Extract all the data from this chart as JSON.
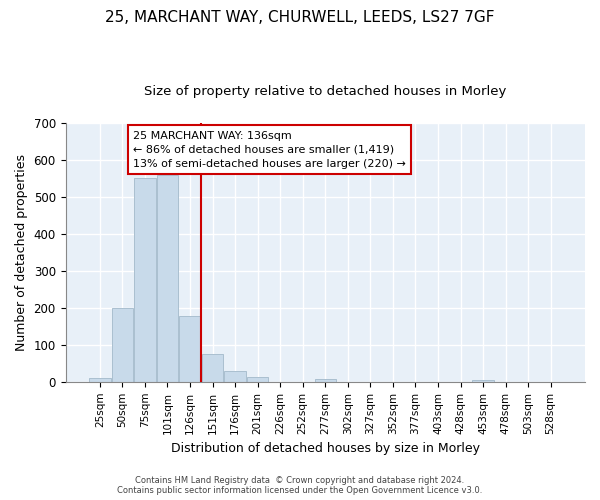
{
  "title1": "25, MARCHANT WAY, CHURWELL, LEEDS, LS27 7GF",
  "title2": "Size of property relative to detached houses in Morley",
  "xlabel": "Distribution of detached houses by size in Morley",
  "ylabel": "Number of detached properties",
  "bar_labels": [
    "25sqm",
    "50sqm",
    "75sqm",
    "101sqm",
    "126sqm",
    "151sqm",
    "176sqm",
    "201sqm",
    "226sqm",
    "252sqm",
    "277sqm",
    "302sqm",
    "327sqm",
    "352sqm",
    "377sqm",
    "403sqm",
    "428sqm",
    "453sqm",
    "478sqm",
    "503sqm",
    "528sqm"
  ],
  "bar_values": [
    10,
    200,
    550,
    558,
    178,
    76,
    30,
    12,
    0,
    0,
    8,
    0,
    0,
    0,
    0,
    0,
    0,
    5,
    0,
    0,
    0
  ],
  "bar_color": "#c8daea",
  "bar_edgecolor": "#aabfcf",
  "vline_x": 4.5,
  "marker_label": "25 MARCHANT WAY: 136sqm",
  "annotation_line1": "← 86% of detached houses are smaller (1,419)",
  "annotation_line2": "13% of semi-detached houses are larger (220) →",
  "vline_color": "#cc0000",
  "annotation_box_edgecolor": "#cc0000",
  "ylim": [
    0,
    700
  ],
  "yticks": [
    0,
    100,
    200,
    300,
    400,
    500,
    600,
    700
  ],
  "fig_background": "#ffffff",
  "plot_background": "#e8f0f8",
  "grid_color": "#ffffff",
  "title1_fontsize": 11,
  "title2_fontsize": 9.5,
  "footnote": "Contains HM Land Registry data  © Crown copyright and database right 2024.\nContains public sector information licensed under the Open Government Licence v3.0."
}
